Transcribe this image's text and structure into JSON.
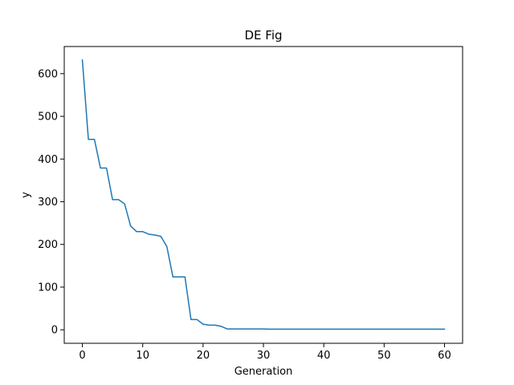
{
  "chart_data": {
    "type": "line",
    "title": "DE Fig",
    "xlabel": "Generation",
    "ylabel": "y",
    "xlim": [
      -3,
      63
    ],
    "ylim": [
      -31.6,
      663.6
    ],
    "xticks": [
      0,
      10,
      20,
      30,
      40,
      50,
      60
    ],
    "yticks": [
      0,
      100,
      200,
      300,
      400,
      500,
      600
    ],
    "grid": false,
    "series": [
      {
        "color": "#1f77b4",
        "x": [
          0,
          1,
          2,
          3,
          4,
          5,
          6,
          7,
          8,
          9,
          10,
          11,
          12,
          13,
          14,
          15,
          16,
          17,
          18,
          19,
          20,
          21,
          22,
          23,
          24,
          25,
          26,
          27,
          28,
          29,
          30,
          31,
          32,
          33,
          34,
          35,
          36,
          37,
          38,
          39,
          40,
          41,
          42,
          43,
          44,
          45,
          46,
          47,
          48,
          49,
          50,
          51,
          52,
          53,
          54,
          55,
          56,
          57,
          58,
          59,
          60
        ],
        "y": [
          632,
          446,
          446,
          379,
          379,
          305,
          305,
          295,
          243,
          230,
          230,
          224,
          222,
          219,
          195,
          124,
          124,
          124,
          24,
          24,
          13,
          11,
          11,
          8,
          2,
          2,
          2,
          2,
          2,
          2,
          2,
          1.5,
          1.5,
          1.5,
          1.5,
          1.5,
          1.5,
          1.5,
          1.5,
          1.5,
          1.5,
          1.5,
          1.5,
          1.5,
          1.5,
          1.5,
          1.5,
          1.5,
          1.5,
          1.5,
          1.5,
          1.5,
          1.5,
          1.5,
          1.5,
          1.5,
          1.5,
          1.5,
          1.5,
          1.5,
          1.5
        ]
      }
    ]
  }
}
